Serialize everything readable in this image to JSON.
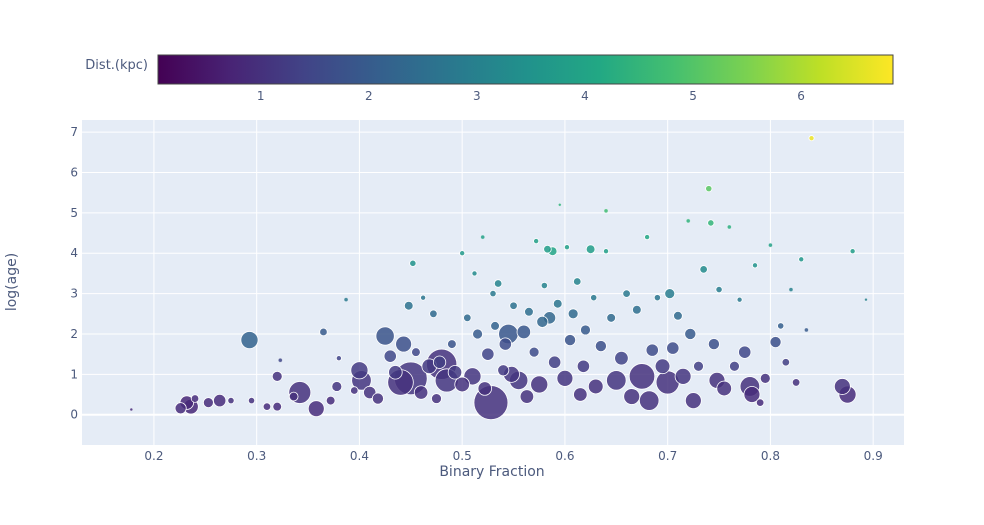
{
  "chart_data": {
    "type": "scatter",
    "xlabel": "Binary Fraction",
    "ylabel": "log(age)",
    "xlim": [
      0.13,
      0.93
    ],
    "ylim": [
      -0.75,
      7.3
    ],
    "xticks": [
      "0.2",
      "0.3",
      "0.4",
      "0.5",
      "0.6",
      "0.7",
      "0.8",
      "0.9"
    ],
    "yticks": [
      "0",
      "1",
      "2",
      "3",
      "4",
      "5",
      "6",
      "7"
    ],
    "colorbar": {
      "title": "Dist.(kpc)",
      "range": [
        0.05,
        6.85
      ],
      "ticks": [
        "1",
        "2",
        "3",
        "4",
        "5",
        "6"
      ],
      "colorscale": "Viridis",
      "placement": "top-horizontal"
    },
    "size_encoding": "marker size grows with cluster size",
    "points": [
      [
        0.178,
        0.13,
        0.9,
        1
      ],
      [
        0.226,
        0.16,
        0.9,
        8
      ],
      [
        0.232,
        0.3,
        0.8,
        10
      ],
      [
        0.236,
        0.2,
        0.8,
        11
      ],
      [
        0.24,
        0.4,
        0.9,
        5
      ],
      [
        0.253,
        0.3,
        0.9,
        7
      ],
      [
        0.264,
        0.35,
        0.9,
        9
      ],
      [
        0.275,
        0.35,
        1.0,
        4
      ],
      [
        0.293,
        1.85,
        2.2,
        13
      ],
      [
        0.295,
        0.35,
        1.0,
        4
      ],
      [
        0.31,
        0.2,
        0.9,
        5
      ],
      [
        0.32,
        0.95,
        1.0,
        7
      ],
      [
        0.32,
        0.2,
        0.9,
        6
      ],
      [
        0.323,
        1.35,
        1.5,
        2
      ],
      [
        0.336,
        0.45,
        1.0,
        6
      ],
      [
        0.342,
        0.55,
        1.0,
        17
      ],
      [
        0.358,
        0.15,
        0.9,
        12
      ],
      [
        0.365,
        2.05,
        2.0,
        5
      ],
      [
        0.372,
        0.35,
        0.9,
        6
      ],
      [
        0.378,
        0.7,
        1.1,
        7
      ],
      [
        0.38,
        1.4,
        1.4,
        3
      ],
      [
        0.387,
        2.85,
        2.8,
        2
      ],
      [
        0.395,
        0.6,
        1.0,
        5
      ],
      [
        0.4,
        1.1,
        1.2,
        13
      ],
      [
        0.402,
        0.85,
        1.1,
        15
      ],
      [
        0.41,
        0.55,
        1.0,
        9
      ],
      [
        0.418,
        0.4,
        1.0,
        8
      ],
      [
        0.425,
        1.95,
        1.8,
        14
      ],
      [
        0.43,
        1.45,
        1.5,
        9
      ],
      [
        0.435,
        1.05,
        1.2,
        10
      ],
      [
        0.44,
        0.8,
        1.0,
        20
      ],
      [
        0.443,
        1.75,
        1.7,
        12
      ],
      [
        0.448,
        2.7,
        2.6,
        6
      ],
      [
        0.45,
        0.9,
        1.1,
        26
      ],
      [
        0.452,
        3.75,
        3.5,
        4
      ],
      [
        0.455,
        1.55,
        1.5,
        6
      ],
      [
        0.46,
        0.55,
        1.0,
        10
      ],
      [
        0.462,
        2.9,
        2.7,
        3
      ],
      [
        0.468,
        1.2,
        1.2,
        11
      ],
      [
        0.472,
        2.5,
        2.4,
        5
      ],
      [
        0.475,
        0.4,
        1.0,
        7
      ],
      [
        0.478,
        1.3,
        1.3,
        9
      ],
      [
        0.48,
        1.25,
        1.0,
        24
      ],
      [
        0.485,
        0.85,
        1.1,
        18
      ],
      [
        0.49,
        1.75,
        1.8,
        6
      ],
      [
        0.493,
        1.05,
        1.2,
        10
      ],
      [
        0.5,
        4.0,
        3.7,
        3
      ],
      [
        0.5,
        0.75,
        1.0,
        11
      ],
      [
        0.505,
        2.4,
        2.4,
        5
      ],
      [
        0.51,
        0.95,
        1.1,
        13
      ],
      [
        0.512,
        3.5,
        3.3,
        3
      ],
      [
        0.515,
        2.0,
        2.0,
        7
      ],
      [
        0.52,
        4.4,
        3.9,
        2
      ],
      [
        0.522,
        0.65,
        1.0,
        10
      ],
      [
        0.525,
        1.5,
        1.4,
        9
      ],
      [
        0.528,
        0.3,
        1.0,
        27
      ],
      [
        0.53,
        3.0,
        2.8,
        4
      ],
      [
        0.532,
        2.2,
        2.2,
        6
      ],
      [
        0.535,
        3.25,
        3.1,
        5
      ],
      [
        0.54,
        1.1,
        1.2,
        8
      ],
      [
        0.542,
        1.75,
        1.6,
        9
      ],
      [
        0.545,
        2.0,
        1.9,
        15
      ],
      [
        0.548,
        1.0,
        1.1,
        12
      ],
      [
        0.55,
        2.7,
        2.6,
        5
      ],
      [
        0.555,
        0.85,
        1.1,
        14
      ],
      [
        0.56,
        2.05,
        1.9,
        10
      ],
      [
        0.563,
        0.45,
        1.0,
        10
      ],
      [
        0.565,
        2.55,
        2.5,
        6
      ],
      [
        0.57,
        1.55,
        1.6,
        7
      ],
      [
        0.572,
        4.3,
        3.9,
        3
      ],
      [
        0.575,
        0.75,
        1.0,
        13
      ],
      [
        0.578,
        2.3,
        2.3,
        8
      ],
      [
        0.58,
        3.2,
        3.1,
        4
      ],
      [
        0.583,
        4.1,
        3.8,
        5
      ],
      [
        0.585,
        2.4,
        2.3,
        9
      ],
      [
        0.588,
        4.05,
        4.0,
        6
      ],
      [
        0.59,
        1.3,
        1.3,
        9
      ],
      [
        0.593,
        2.75,
        2.7,
        6
      ],
      [
        0.595,
        5.2,
        4.4,
        1
      ],
      [
        0.6,
        0.9,
        1.1,
        12
      ],
      [
        0.602,
        4.15,
        3.9,
        3
      ],
      [
        0.605,
        1.85,
        1.8,
        8
      ],
      [
        0.608,
        2.5,
        2.4,
        7
      ],
      [
        0.612,
        3.3,
        3.1,
        5
      ],
      [
        0.615,
        0.5,
        1.0,
        10
      ],
      [
        0.618,
        1.2,
        1.2,
        9
      ],
      [
        0.62,
        2.1,
        2.0,
        7
      ],
      [
        0.625,
        4.1,
        3.8,
        6
      ],
      [
        0.628,
        2.9,
        2.8,
        4
      ],
      [
        0.63,
        0.7,
        1.0,
        11
      ],
      [
        0.635,
        1.7,
        1.7,
        8
      ],
      [
        0.64,
        4.05,
        3.9,
        3
      ],
      [
        0.64,
        5.05,
        4.7,
        2
      ],
      [
        0.645,
        2.4,
        2.4,
        6
      ],
      [
        0.65,
        0.85,
        1.1,
        15
      ],
      [
        0.655,
        1.4,
        1.4,
        10
      ],
      [
        0.66,
        3.0,
        2.8,
        5
      ],
      [
        0.665,
        0.45,
        1.0,
        12
      ],
      [
        0.67,
        2.6,
        2.5,
        6
      ],
      [
        0.675,
        0.95,
        1.0,
        20
      ],
      [
        0.68,
        4.4,
        4.1,
        3
      ],
      [
        0.682,
        0.35,
        1.0,
        15
      ],
      [
        0.685,
        1.6,
        1.6,
        9
      ],
      [
        0.69,
        2.9,
        2.7,
        4
      ],
      [
        0.695,
        1.2,
        1.2,
        11
      ],
      [
        0.7,
        0.8,
        1.0,
        18
      ],
      [
        0.702,
        3.0,
        2.9,
        7
      ],
      [
        0.705,
        1.65,
        1.6,
        9
      ],
      [
        0.71,
        2.45,
        2.4,
        6
      ],
      [
        0.715,
        0.95,
        1.1,
        12
      ],
      [
        0.72,
        4.8,
        4.4,
        2
      ],
      [
        0.722,
        2.0,
        2.0,
        8
      ],
      [
        0.725,
        0.35,
        1.0,
        12
      ],
      [
        0.73,
        1.2,
        1.3,
        7
      ],
      [
        0.735,
        3.6,
        3.3,
        5
      ],
      [
        0.74,
        5.6,
        5.1,
        4
      ],
      [
        0.742,
        4.75,
        4.5,
        4
      ],
      [
        0.745,
        1.75,
        1.7,
        8
      ],
      [
        0.748,
        0.85,
        1.0,
        12
      ],
      [
        0.75,
        3.1,
        2.9,
        4
      ],
      [
        0.755,
        0.65,
        1.0,
        11
      ],
      [
        0.76,
        4.65,
        4.3,
        2
      ],
      [
        0.765,
        1.2,
        1.3,
        7
      ],
      [
        0.77,
        2.85,
        2.8,
        3
      ],
      [
        0.775,
        1.55,
        1.5,
        9
      ],
      [
        0.78,
        0.7,
        1.0,
        15
      ],
      [
        0.782,
        0.5,
        0.9,
        12
      ],
      [
        0.785,
        3.7,
        3.5,
        3
      ],
      [
        0.79,
        0.3,
        0.9,
        5
      ],
      [
        0.795,
        0.9,
        1.0,
        7
      ],
      [
        0.8,
        4.2,
        3.9,
        2
      ],
      [
        0.805,
        1.8,
        1.7,
        8
      ],
      [
        0.81,
        2.2,
        2.1,
        4
      ],
      [
        0.815,
        1.3,
        1.3,
        5
      ],
      [
        0.82,
        3.1,
        3.0,
        2
      ],
      [
        0.825,
        0.8,
        1.0,
        5
      ],
      [
        0.83,
        3.85,
        3.6,
        3
      ],
      [
        0.835,
        2.1,
        2.0,
        2
      ],
      [
        0.84,
        6.85,
        6.7,
        3
      ],
      [
        0.87,
        0.7,
        1.0,
        12
      ],
      [
        0.875,
        0.5,
        0.9,
        13
      ],
      [
        0.88,
        4.05,
        3.8,
        3
      ],
      [
        0.893,
        2.85,
        3.0,
        1
      ]
    ]
  }
}
